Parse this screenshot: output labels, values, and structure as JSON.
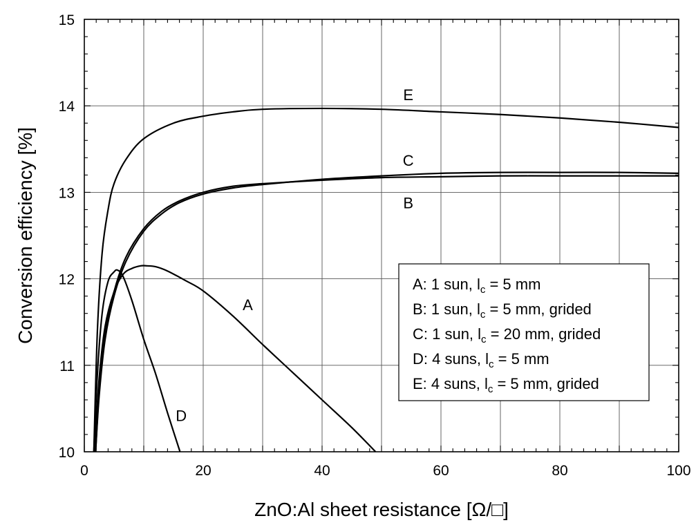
{
  "chart_data": {
    "type": "line",
    "title": "",
    "xlabel": "ZnO:Al sheet resistance [Ω/□]",
    "ylabel": "Conversion efficiency [%]",
    "xlim": [
      0,
      100
    ],
    "ylim": [
      10,
      15
    ],
    "xticks": [
      0,
      20,
      40,
      60,
      80,
      100
    ],
    "xtick_labels": [
      "0",
      "20",
      "40",
      "60",
      "80",
      "100"
    ],
    "yticks": [
      10,
      11,
      12,
      13,
      14,
      15
    ],
    "ytick_labels": [
      "10",
      "11",
      "12",
      "13",
      "14",
      "15"
    ],
    "grid": true,
    "legend_position": "center-right",
    "legend": [
      {
        "prefix": "A:  1 sun, l",
        "sub": "c",
        "suffix": " = 5 mm"
      },
      {
        "prefix": "B:  1 sun, l",
        "sub": "c",
        "suffix": " = 5 mm, grided"
      },
      {
        "prefix": "C:  1 sun, l",
        "sub": "c",
        "suffix": " = 20 mm, grided"
      },
      {
        "prefix": "D:  4 suns, l",
        "sub": "c",
        "suffix": " = 5 mm"
      },
      {
        "prefix": "E:  4 suns, l",
        "sub": "c",
        "suffix": " = 5 mm, grided"
      }
    ],
    "series": [
      {
        "name": "A",
        "label_at": [
          27.5,
          11.7
        ],
        "x": [
          1.7,
          2.5,
          3.5,
          5,
          6.5,
          8,
          9.5,
          10.5,
          12,
          14,
          17,
          20,
          25,
          30,
          35,
          40,
          45,
          49
        ],
        "y": [
          10.0,
          10.85,
          11.45,
          11.85,
          12.05,
          12.12,
          12.15,
          12.15,
          12.14,
          12.09,
          11.98,
          11.86,
          11.57,
          11.24,
          10.92,
          10.6,
          10.28,
          10.0
        ]
      },
      {
        "name": "B",
        "label_at": [
          54.5,
          12.88
        ],
        "x": [
          1.9,
          2.5,
          3.5,
          5,
          7,
          10,
          13,
          16,
          20,
          25,
          30,
          40,
          50,
          60,
          70,
          80,
          90,
          100
        ],
        "y": [
          10.0,
          10.7,
          11.35,
          11.85,
          12.25,
          12.58,
          12.78,
          12.9,
          13.0,
          13.07,
          13.1,
          13.14,
          13.17,
          13.18,
          13.19,
          13.19,
          13.19,
          13.19
        ]
      },
      {
        "name": "C",
        "label_at": [
          54.5,
          13.37
        ],
        "x": [
          1.9,
          2.5,
          3.5,
          5,
          7,
          10,
          13,
          16,
          20,
          25,
          30,
          40,
          50,
          60,
          70,
          80,
          90,
          100
        ],
        "y": [
          10.0,
          10.65,
          11.3,
          11.8,
          12.2,
          12.55,
          12.75,
          12.88,
          12.98,
          13.05,
          13.09,
          13.15,
          13.19,
          13.22,
          13.23,
          13.23,
          13.23,
          13.22
        ]
      },
      {
        "name": "D",
        "label_at": [
          16.3,
          10.42
        ],
        "x": [
          1.6,
          2.2,
          3,
          4,
          5,
          5.6,
          6.5,
          8,
          10,
          12,
          14,
          16.1
        ],
        "y": [
          10.0,
          10.9,
          11.6,
          11.97,
          12.08,
          12.1,
          12.03,
          11.75,
          11.3,
          10.9,
          10.45,
          10.0
        ]
      },
      {
        "name": "E",
        "label_at": [
          54.5,
          14.13
        ],
        "x": [
          1.6,
          2.2,
          3,
          4,
          5,
          7,
          10,
          15,
          20,
          25,
          30,
          40,
          50,
          60,
          70,
          80,
          90,
          100
        ],
        "y": [
          10.0,
          11.4,
          12.3,
          12.8,
          13.1,
          13.38,
          13.62,
          13.8,
          13.88,
          13.93,
          13.96,
          13.97,
          13.96,
          13.93,
          13.9,
          13.86,
          13.81,
          13.75
        ]
      }
    ]
  }
}
